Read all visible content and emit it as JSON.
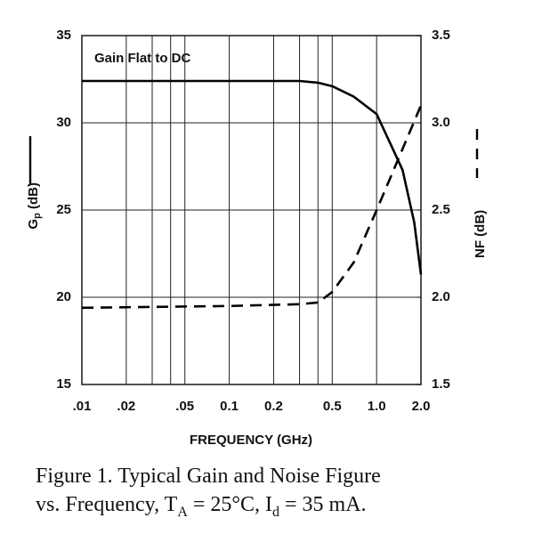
{
  "chart_data": {
    "type": "line",
    "annotation": "Gain Flat to DC",
    "xlabel": "FREQUENCY (GHz)",
    "ylabel": [
      "G",
      "p",
      " (dB)"
    ],
    "y2label": "NF (dB)",
    "caption": {
      "line1": "Figure 1.  Typical Gain and Noise Figure",
      "line2": [
        "vs. Frequency, T",
        "A",
        " = 25°C, I",
        "d",
        " = 35 mA."
      ]
    },
    "xscale": "log",
    "xlim": [
      0.01,
      2
    ],
    "xticks": [
      {
        "value": 0.01,
        "label": ".01"
      },
      {
        "value": 0.02,
        "label": ".02"
      },
      {
        "value": 0.05,
        "label": ".05"
      },
      0.1,
      0.2,
      0.5,
      {
        "value": 1,
        "label": "1.0"
      },
      {
        "value": 2,
        "label": "2.0"
      }
    ],
    "xgrid_minor": [
      0.03,
      0.04,
      0.3,
      0.4
    ],
    "ylim": [
      15,
      35
    ],
    "yticks": [
      15,
      20,
      25,
      30,
      35
    ],
    "y2lim": [
      1.5,
      3.5
    ],
    "y2ticks": [
      1.5,
      {
        "value": 2,
        "label": "2.0"
      },
      2.5,
      {
        "value": 3,
        "label": "3.0"
      },
      3.5
    ],
    "grid": true,
    "series": [
      {
        "name": "Gp",
        "color": "#000000",
        "dash": "solid",
        "x": [
          0.01,
          0.1,
          0.3,
          0.4,
          0.5,
          0.7,
          1.0,
          1.5,
          1.8,
          2.0
        ],
        "values": [
          32.4,
          32.4,
          32.4,
          32.3,
          32.1,
          31.5,
          30.5,
          27.3,
          24.3,
          21.3
        ]
      },
      {
        "name": "NF",
        "color": "#000000",
        "dash": "dashed",
        "axis": "y2",
        "x": [
          0.01,
          0.1,
          0.3,
          0.4,
          0.5,
          0.7,
          1.0,
          1.5,
          2.0
        ],
        "values": [
          1.94,
          1.95,
          1.96,
          1.97,
          2.03,
          2.2,
          2.5,
          2.85,
          3.1
        ]
      }
    ]
  }
}
